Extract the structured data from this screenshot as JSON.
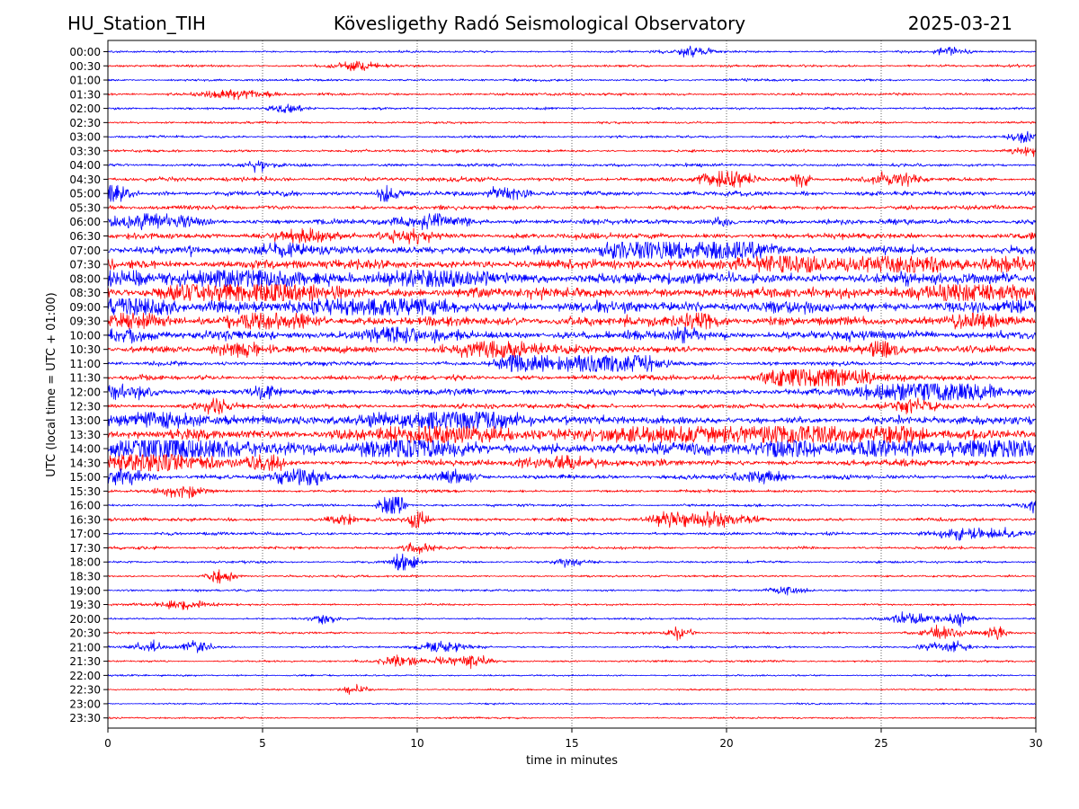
{
  "header": {
    "station": "HU_Station_TIH",
    "observatory": "Kövesligethy Radó Seismological Observatory",
    "date": "2025-03-21"
  },
  "chart_data": {
    "type": "line",
    "title": "Kövesligethy Radó Seismological Observatory",
    "xlabel": "time in minutes",
    "ylabel": "UTC (local time = UTC + 01:00)",
    "xlim": [
      0,
      30
    ],
    "x_ticks": [
      "0",
      "5",
      "10",
      "15",
      "20",
      "25",
      "30"
    ],
    "grid": "vertical dotted lines at 5-minute intervals",
    "colors": {
      "even_rows": "#0000ff",
      "odd_rows": "#ff0000"
    },
    "rows": [
      {
        "label": "00:00",
        "noise": 0.3,
        "events": [
          [
            27.3,
            1.4,
            0.3
          ],
          [
            18.9,
            1.0,
            0.6
          ]
        ]
      },
      {
        "label": "00:30",
        "noise": 0.35,
        "events": [
          [
            8.0,
            1.0,
            0.5
          ]
        ]
      },
      {
        "label": "01:00",
        "noise": 0.33,
        "events": []
      },
      {
        "label": "01:30",
        "noise": 0.38,
        "events": [
          [
            4.0,
            1.0,
            0.8
          ]
        ]
      },
      {
        "label": "02:00",
        "noise": 0.35,
        "events": [
          [
            5.8,
            1.0,
            0.4
          ]
        ]
      },
      {
        "label": "02:30",
        "noise": 0.33,
        "events": []
      },
      {
        "label": "03:00",
        "noise": 0.36,
        "events": [
          [
            29.7,
            1.2,
            0.4
          ]
        ]
      },
      {
        "label": "03:30",
        "noise": 0.4,
        "events": [
          [
            29.8,
            1.2,
            0.4
          ]
        ]
      },
      {
        "label": "04:00",
        "noise": 0.45,
        "events": [
          [
            4.8,
            1.2,
            0.3
          ]
        ]
      },
      {
        "label": "04:30",
        "noise": 0.6,
        "events": [
          [
            20.0,
            2.2,
            0.5
          ],
          [
            22.4,
            2.0,
            0.2
          ],
          [
            25.5,
            1.5,
            0.5
          ]
        ]
      },
      {
        "label": "05:00",
        "noise": 0.7,
        "events": [
          [
            0.2,
            2.2,
            0.3
          ],
          [
            9.0,
            2.0,
            0.2
          ],
          [
            12.8,
            1.5,
            0.5
          ]
        ]
      },
      {
        "label": "05:30",
        "noise": 0.6,
        "events": []
      },
      {
        "label": "06:00",
        "noise": 0.75,
        "events": [
          [
            1.5,
            1.6,
            1.0
          ],
          [
            19.8,
            1.5,
            0.2
          ],
          [
            10.5,
            1.4,
            0.8
          ]
        ]
      },
      {
        "label": "06:30",
        "noise": 0.8,
        "events": [
          [
            6.3,
            1.8,
            0.6
          ],
          [
            9.8,
            1.4,
            0.5
          ]
        ]
      },
      {
        "label": "07:00",
        "noise": 1.1,
        "events": [
          [
            17.7,
            2.4,
            0.5
          ],
          [
            20.0,
            2.4,
            1.0
          ],
          [
            16.5,
            1.8,
            0.5
          ],
          [
            5.5,
            1.5,
            0.6
          ]
        ]
      },
      {
        "label": "07:30",
        "noise": 1.3,
        "events": [
          [
            21.5,
            1.8,
            1.2
          ],
          [
            26.0,
            1.6,
            1.2
          ],
          [
            29.0,
            1.6,
            0.5
          ]
        ]
      },
      {
        "label": "08:00",
        "noise": 1.6,
        "events": [
          [
            0.2,
            2.0,
            0.4
          ],
          [
            4.5,
            1.8,
            1.5
          ],
          [
            10.5,
            1.6,
            1.0
          ]
        ]
      },
      {
        "label": "08:30",
        "noise": 1.5,
        "events": [
          [
            2.8,
            2.4,
            0.6
          ],
          [
            5.0,
            2.4,
            1.2
          ],
          [
            27.5,
            1.8,
            1.0
          ]
        ]
      },
      {
        "label": "09:00",
        "noise": 1.5,
        "events": [
          [
            1.0,
            2.0,
            0.8
          ],
          [
            8.6,
            2.0,
            1.5
          ],
          [
            30.0,
            1.6,
            0.6
          ]
        ]
      },
      {
        "label": "09:30",
        "noise": 1.3,
        "events": [
          [
            0.8,
            2.0,
            0.6
          ],
          [
            5.3,
            1.8,
            0.8
          ],
          [
            28.0,
            2.0,
            0.5
          ],
          [
            19.0,
            1.6,
            0.5
          ]
        ]
      },
      {
        "label": "10:00",
        "noise": 1.2,
        "events": [
          [
            0.5,
            1.6,
            0.6
          ],
          [
            9.2,
            1.6,
            0.8
          ],
          [
            18.6,
            1.6,
            0.3
          ]
        ]
      },
      {
        "label": "10:30",
        "noise": 1.1,
        "events": [
          [
            12.5,
            2.2,
            0.8
          ],
          [
            4.2,
            1.6,
            0.4
          ],
          [
            25.0,
            1.6,
            0.3
          ]
        ]
      },
      {
        "label": "11:00",
        "noise": 0.6,
        "events": [
          [
            13.4,
            2.8,
            0.5
          ],
          [
            15.8,
            2.6,
            1.0
          ],
          [
            17.0,
            1.8,
            0.6
          ]
        ]
      },
      {
        "label": "11:30",
        "noise": 0.7,
        "events": [
          [
            21.9,
            2.6,
            0.4
          ],
          [
            23.6,
            2.6,
            0.6
          ],
          [
            22.8,
            1.8,
            1.0
          ]
        ]
      },
      {
        "label": "12:00",
        "noise": 0.9,
        "events": [
          [
            26.0,
            2.4,
            1.0
          ],
          [
            27.5,
            2.0,
            0.8
          ],
          [
            0.5,
            1.8,
            0.6
          ],
          [
            5.1,
            1.6,
            0.2
          ]
        ]
      },
      {
        "label": "12:30",
        "noise": 0.7,
        "events": [
          [
            3.4,
            2.0,
            0.3
          ],
          [
            26.0,
            1.6,
            0.6
          ]
        ]
      },
      {
        "label": "13:00",
        "noise": 1.1,
        "events": [
          [
            10.5,
            2.0,
            1.5
          ],
          [
            12.0,
            1.8,
            0.8
          ],
          [
            1.5,
            1.6,
            1.0
          ]
        ]
      },
      {
        "label": "13:30",
        "noise": 1.3,
        "events": [
          [
            11.0,
            2.2,
            1.5
          ],
          [
            18.0,
            1.8,
            1.5
          ],
          [
            22.5,
            2.0,
            1.5
          ],
          [
            25.5,
            1.8,
            0.6
          ]
        ]
      },
      {
        "label": "14:00",
        "noise": 1.6,
        "events": [
          [
            1.3,
            3.0,
            0.8
          ],
          [
            3.0,
            3.0,
            1.0
          ],
          [
            9.8,
            2.4,
            1.0
          ],
          [
            22.0,
            2.2,
            0.6
          ],
          [
            25.0,
            2.2,
            0.8
          ],
          [
            28.7,
            2.0,
            0.8
          ]
        ]
      },
      {
        "label": "14:30",
        "noise": 0.8,
        "events": [
          [
            1.5,
            2.8,
            1.2
          ],
          [
            5.0,
            1.6,
            0.5
          ],
          [
            14.5,
            1.4,
            1.0
          ]
        ]
      },
      {
        "label": "15:00",
        "noise": 0.6,
        "events": [
          [
            6.2,
            2.4,
            0.6
          ],
          [
            0.5,
            1.6,
            0.6
          ],
          [
            11.2,
            1.6,
            0.5
          ],
          [
            21.0,
            1.4,
            0.6
          ]
        ]
      },
      {
        "label": "15:30",
        "noise": 0.4,
        "events": [
          [
            2.5,
            1.2,
            0.6
          ]
        ]
      },
      {
        "label": "16:00",
        "noise": 0.35,
        "events": [
          [
            9.2,
            5.0,
            0.25
          ],
          [
            30.0,
            1.4,
            0.3
          ]
        ]
      },
      {
        "label": "16:30",
        "noise": 0.5,
        "events": [
          [
            10.0,
            3.6,
            0.2
          ],
          [
            19.5,
            2.0,
            0.8
          ],
          [
            18.0,
            1.6,
            0.4
          ],
          [
            7.5,
            1.4,
            0.3
          ]
        ]
      },
      {
        "label": "17:00",
        "noise": 0.45,
        "events": [
          [
            28.0,
            1.3,
            1.0
          ]
        ]
      },
      {
        "label": "17:30",
        "noise": 0.4,
        "events": [
          [
            10.0,
            1.4,
            0.3
          ]
        ]
      },
      {
        "label": "18:00",
        "noise": 0.35,
        "events": [
          [
            9.6,
            3.0,
            0.25
          ],
          [
            15.0,
            1.2,
            0.3
          ]
        ]
      },
      {
        "label": "18:30",
        "noise": 0.3,
        "events": [
          [
            3.6,
            1.8,
            0.3
          ]
        ]
      },
      {
        "label": "19:00",
        "noise": 0.3,
        "events": [
          [
            22.0,
            1.2,
            0.4
          ]
        ]
      },
      {
        "label": "19:30",
        "noise": 0.28,
        "events": [
          [
            2.5,
            1.2,
            0.6
          ]
        ]
      },
      {
        "label": "20:00",
        "noise": 0.28,
        "events": [
          [
            26.0,
            1.6,
            0.5
          ],
          [
            27.5,
            1.4,
            0.3
          ],
          [
            7.0,
            1.2,
            0.3
          ]
        ]
      },
      {
        "label": "20:30",
        "noise": 0.3,
        "events": [
          [
            28.7,
            1.8,
            0.2
          ],
          [
            18.5,
            1.4,
            0.3
          ],
          [
            27.0,
            1.4,
            0.5
          ]
        ]
      },
      {
        "label": "21:00",
        "noise": 0.3,
        "events": [
          [
            2.9,
            1.6,
            0.4
          ],
          [
            1.3,
            1.3,
            0.3
          ],
          [
            11.0,
            1.2,
            0.6
          ],
          [
            27.0,
            1.3,
            0.6
          ]
        ]
      },
      {
        "label": "21:30",
        "noise": 0.3,
        "events": [
          [
            11.5,
            1.6,
            0.6
          ],
          [
            9.5,
            1.3,
            0.5
          ]
        ]
      },
      {
        "label": "22:00",
        "noise": 0.25,
        "events": []
      },
      {
        "label": "22:30",
        "noise": 0.25,
        "events": [
          [
            8.0,
            1.2,
            0.3
          ]
        ]
      },
      {
        "label": "23:00",
        "noise": 0.25,
        "events": []
      },
      {
        "label": "23:30",
        "noise": 0.25,
        "events": []
      }
    ]
  }
}
